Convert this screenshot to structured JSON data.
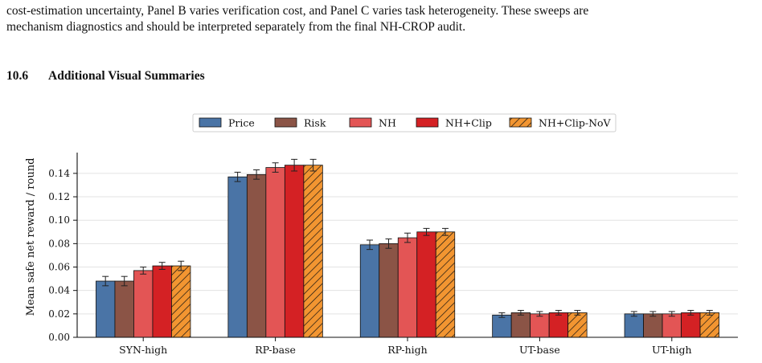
{
  "intro_lines": [
    "cost-estimation uncertainty, Panel B varies verification cost, and Panel C varies task heterogeneity. These sweeps are",
    "mechanism diagnostics and should be interpreted separately from the final NH-CROP audit."
  ],
  "section": {
    "number": "10.6",
    "title": "Additional Visual Summaries"
  },
  "chart_data": {
    "type": "bar",
    "categories": [
      "SYN-high",
      "RP-base",
      "RP-high",
      "UT-base",
      "UT-high"
    ],
    "ylabel": "Mean safe net reward / round",
    "ylim": [
      0,
      0.155
    ],
    "yticks": [
      0.0,
      0.02,
      0.04,
      0.06,
      0.08,
      0.1,
      0.12,
      0.14
    ],
    "ytick_labels": [
      "0.00",
      "0.02",
      "0.04",
      "0.06",
      "0.08",
      "0.10",
      "0.12",
      "0.14"
    ],
    "grid": "horizontal",
    "legend_position": "top-center",
    "series": [
      {
        "name": "Price",
        "color": "#4a74a6",
        "hatch": false,
        "values": [
          0.048,
          0.137,
          0.079,
          0.019,
          0.02
        ],
        "errors": [
          0.004,
          0.004,
          0.004,
          0.002,
          0.002
        ]
      },
      {
        "name": "Risk",
        "color": "#8b5446",
        "hatch": false,
        "values": [
          0.048,
          0.139,
          0.08,
          0.021,
          0.02
        ],
        "errors": [
          0.004,
          0.004,
          0.004,
          0.002,
          0.002
        ]
      },
      {
        "name": "NH",
        "color": "#e35555",
        "hatch": false,
        "values": [
          0.057,
          0.145,
          0.085,
          0.02,
          0.02
        ],
        "errors": [
          0.003,
          0.004,
          0.004,
          0.002,
          0.002
        ]
      },
      {
        "name": "NH+Clip",
        "color": "#d42124",
        "hatch": false,
        "values": [
          0.061,
          0.147,
          0.09,
          0.021,
          0.021
        ],
        "errors": [
          0.003,
          0.005,
          0.003,
          0.002,
          0.002
        ]
      },
      {
        "name": "NH+Clip-NoV",
        "color": "#f29531",
        "hatch": true,
        "values": [
          0.061,
          0.147,
          0.09,
          0.021,
          0.021
        ],
        "errors": [
          0.004,
          0.005,
          0.003,
          0.002,
          0.002
        ]
      }
    ]
  }
}
